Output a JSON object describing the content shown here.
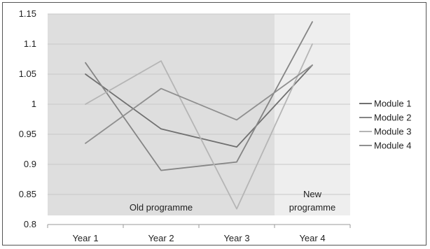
{
  "chart_data": {
    "type": "line",
    "title": "",
    "xlabel": "",
    "ylabel": "",
    "categories": [
      "Year 1",
      "Year 2",
      "Year 3",
      "Year 4"
    ],
    "ylim": [
      0.8,
      1.15
    ],
    "y_ticks": [
      "0.8",
      "0.85",
      "0.9",
      "0.95",
      "1",
      "1.05",
      "1.1",
      "1.15"
    ],
    "grid": "horizontal",
    "legend_position": "right",
    "regions": [
      {
        "label": "Old programme",
        "from": "Year 1",
        "to": "Year 3",
        "color": "#dedede"
      },
      {
        "label": "New programme",
        "from": "Year 4",
        "to": "Year 4",
        "color": "#eeeeee",
        "label_lines": [
          "New",
          "programme"
        ]
      }
    ],
    "series": [
      {
        "name": "Module 1",
        "values": [
          1.05,
          0.959,
          0.929,
          1.065
        ],
        "color": "#707070"
      },
      {
        "name": "Module 2",
        "values": [
          1.069,
          0.89,
          0.904,
          1.137
        ],
        "color": "#858585"
      },
      {
        "name": "Module 3",
        "values": [
          1.0,
          1.072,
          0.826,
          1.1
        ],
        "color": "#b5b5b5"
      },
      {
        "name": "Module 4",
        "values": [
          0.935,
          1.026,
          0.974,
          1.065
        ],
        "color": "#8f8f8f"
      }
    ]
  }
}
